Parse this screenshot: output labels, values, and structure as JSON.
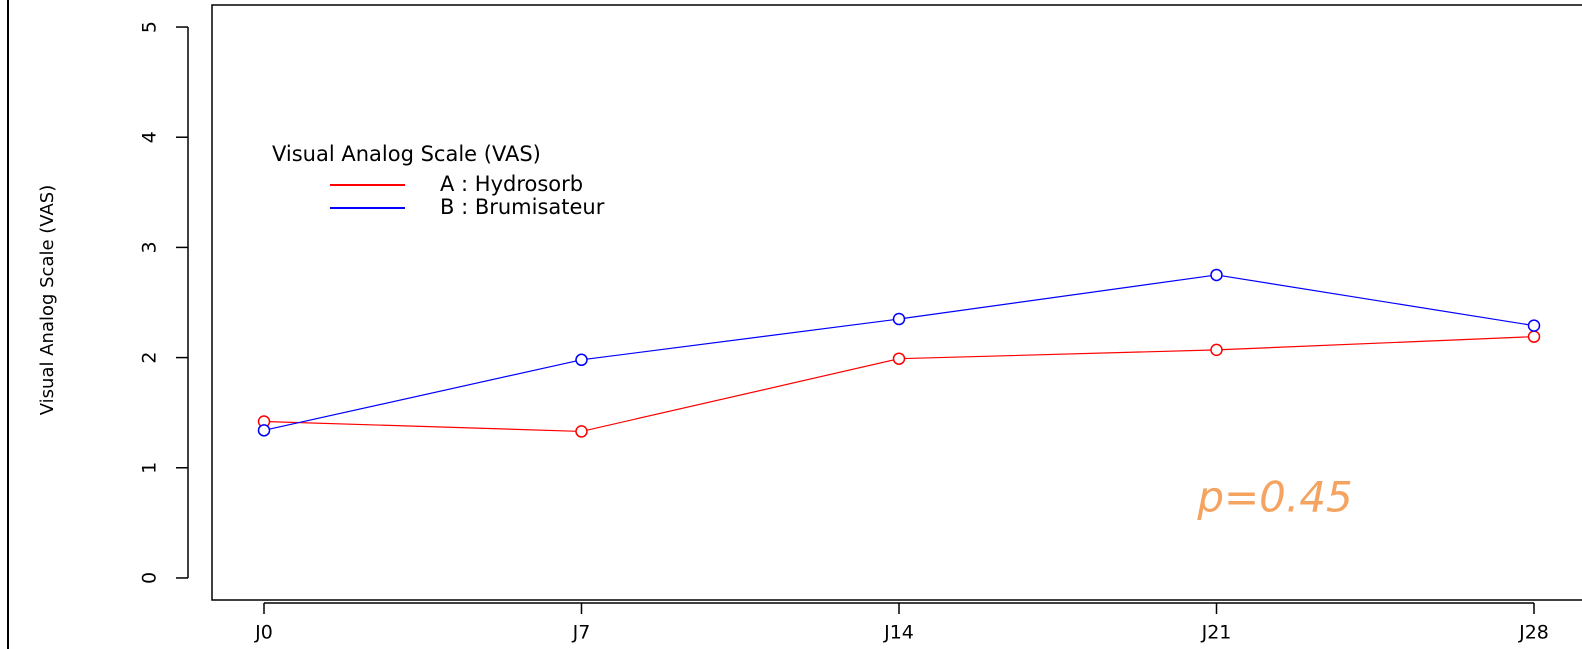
{
  "chart_data": {
    "type": "line",
    "ylabel": "Visual Analog Scale (VAS)",
    "legend_title": "Visual Analog Scale  (VAS)",
    "categories": [
      "J0",
      "J7",
      "J14",
      "J21",
      "J28"
    ],
    "series": [
      {
        "name": "A : Hydrosorb",
        "color": "#ff0000",
        "values": [
          1.42,
          1.33,
          1.99,
          2.07,
          2.19
        ]
      },
      {
        "name": "B : Brumisateur",
        "color": "#0000ff",
        "values": [
          1.34,
          1.98,
          2.35,
          2.75,
          2.29
        ]
      }
    ],
    "ylim": [
      -0.2,
      5.2
    ],
    "yticks": [
      0,
      1,
      2,
      3,
      4,
      5
    ],
    "annotation": "p=0.45",
    "annotation_color": "#f4a460",
    "legend": "upper left"
  }
}
